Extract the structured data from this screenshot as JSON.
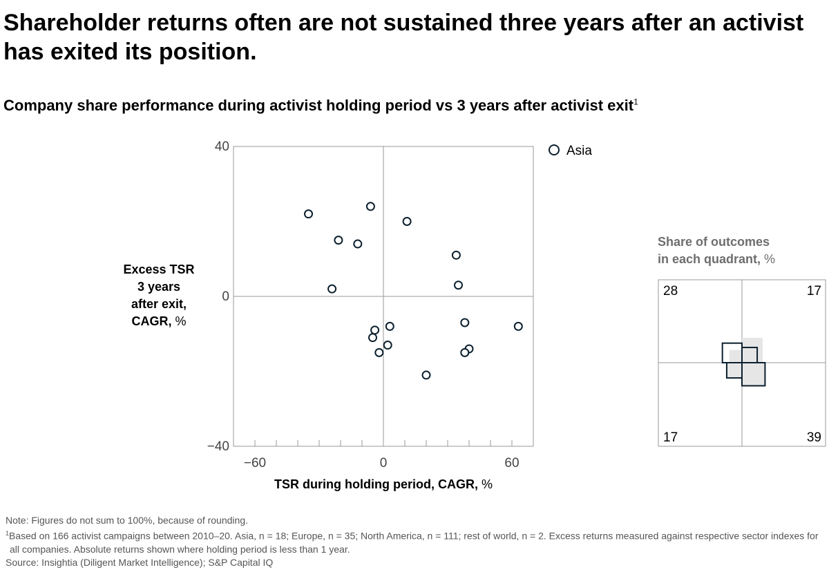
{
  "headline": "Shareholder returns often are not sustained three years after an activist has exited its position.",
  "chart_data": {
    "type": "scatter",
    "title": "Company share performance during activist holding period vs 3 years after activist exit",
    "title_footnote_marker": "1",
    "xlabel_bold": "TSR during holding period, CAGR,",
    "xlabel_unit": "%",
    "ylabel_bold_lines": [
      "Excess TSR",
      "3 years",
      "after exit,",
      "CAGR,"
    ],
    "ylabel_unit": "%",
    "xlim": [
      -70,
      70
    ],
    "ylim": [
      -40,
      40
    ],
    "x_ticks": [
      -60,
      -50,
      -40,
      -30,
      -20,
      -10,
      0,
      10,
      20,
      30,
      40,
      50,
      60
    ],
    "x_tick_labels": [
      {
        "value": -60,
        "label": "−60"
      },
      {
        "value": 0,
        "label": "0"
      },
      {
        "value": 60,
        "label": "60"
      }
    ],
    "y_tick_labels": [
      {
        "value": 40,
        "label": "40"
      },
      {
        "value": 0,
        "label": "0"
      },
      {
        "value": -40,
        "label": "−40"
      }
    ],
    "grid": false,
    "legend_position": "top-right",
    "series": [
      {
        "name": "Asia",
        "marker": "open-circle",
        "color": "#0b1f2e",
        "points": [
          {
            "x": -35,
            "y": 22
          },
          {
            "x": -6,
            "y": 24
          },
          {
            "x": 11,
            "y": 20
          },
          {
            "x": -21,
            "y": 15
          },
          {
            "x": -12,
            "y": 14
          },
          {
            "x": 34,
            "y": 11
          },
          {
            "x": 35,
            "y": 3
          },
          {
            "x": -24,
            "y": 2
          },
          {
            "x": 3,
            "y": -8
          },
          {
            "x": 38,
            "y": -7
          },
          {
            "x": 63,
            "y": -8
          },
          {
            "x": -4,
            "y": -9
          },
          {
            "x": -5,
            "y": -11
          },
          {
            "x": 2,
            "y": -13
          },
          {
            "x": -2,
            "y": -15
          },
          {
            "x": 40,
            "y": -14
          },
          {
            "x": 38,
            "y": -15
          },
          {
            "x": 20,
            "y": -21
          }
        ]
      }
    ],
    "inset": {
      "title_bold_lines": [
        "Share of outcomes",
        "in each quadrant,"
      ],
      "title_unit": "%",
      "quadrants": {
        "top_left": 28,
        "top_right": 17,
        "bottom_left": 17,
        "bottom_right": 39
      },
      "quadrant_labels": {
        "top_left": "28",
        "top_right": "17",
        "bottom_left": "17",
        "bottom_right": "39"
      },
      "outline_color": "#0b1f2e",
      "fill_color": "#e6e6e6"
    }
  },
  "footnotes": {
    "note": "Note: Figures do not sum to 100%, because of rounding.",
    "footnote_marker": "1",
    "footnote1": "Based on 166 activist campaigns between 2010–20. Asia, n = 18; Europe, n = 35; North America, n = 111; rest of world, n = 2. Excess returns measured against respective sector indexes for all companies. Absolute returns shown where holding period is less than 1 year.",
    "source": "Source: Insightia (Diligent Market Intelligence); S&P Capital IQ"
  }
}
